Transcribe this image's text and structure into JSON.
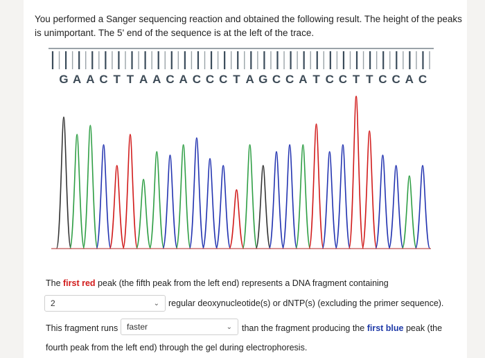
{
  "prompt_line1": "You performed a Sanger sequencing reaction and obtained the following result. The height of the peaks",
  "prompt_line2": "is unimportant. The 5' end of the sequence is at the left of the trace.",
  "sequence": [
    "G",
    "A",
    "A",
    "C",
    "T",
    "T",
    "A",
    "A",
    "C",
    "A",
    "C",
    "C",
    "C",
    "T",
    "A",
    "G",
    "C",
    "C",
    "A",
    "T",
    "C",
    "C",
    "T",
    "T",
    "C",
    "C",
    "A",
    "C"
  ],
  "colors": {
    "G": "#333333",
    "A": "#2e9e44",
    "C": "#2233b0",
    "T": "#d11a1a",
    "tick_light": "#9aa3a8",
    "tick_dark": "#3a4b5a"
  },
  "question1": {
    "prefix": "The ",
    "highlight": "first red",
    "suffix": " peak (the fifth peak from the left end) represents a DNA fragment containing"
  },
  "select1": {
    "value": "2"
  },
  "select1_trailing": "regular deoxynucleotide(s) or dNTP(s) (excluding the primer sequence).",
  "question2": {
    "prefix": "This fragment runs"
  },
  "select2": {
    "value": "faster"
  },
  "question2_tail_prefix": "than the fragment producing the ",
  "question2_highlight": "first blue",
  "question2_tail_suffix": " peak (the",
  "question2_line2": "fourth peak from the left end) through the gel during electrophoresis."
}
